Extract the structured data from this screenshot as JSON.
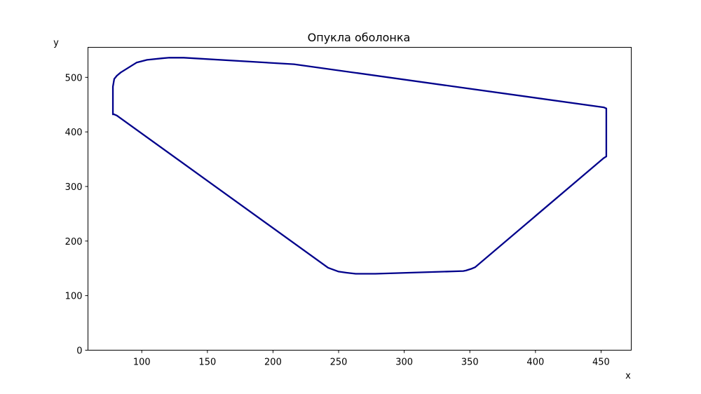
{
  "chart_data": {
    "type": "line",
    "title": "Опукла оболонка",
    "xlabel": "x",
    "ylabel": "y",
    "xlim": [
      59,
      473
    ],
    "ylim": [
      0,
      555
    ],
    "xticks": [
      100,
      150,
      200,
      250,
      300,
      350,
      400,
      450
    ],
    "yticks": [
      0,
      100,
      200,
      300,
      400,
      500
    ],
    "grid": false,
    "series": [
      {
        "color": "#00008b",
        "x": [
          78,
          78,
          79,
          81,
          84,
          96,
          104,
          116,
          121,
          132,
          216,
          452,
          454,
          454,
          452,
          354,
          351,
          347,
          345,
          278,
          263,
          256,
          250,
          242,
          81,
          78,
          78
        ],
        "y": [
          432,
          483,
          497,
          503,
          509,
          527,
          532,
          535,
          536,
          536,
          524,
          445,
          443,
          355,
          352,
          152,
          149,
          146,
          145,
          140,
          140,
          142,
          144,
          151,
          430,
          433,
          432
        ]
      }
    ]
  }
}
